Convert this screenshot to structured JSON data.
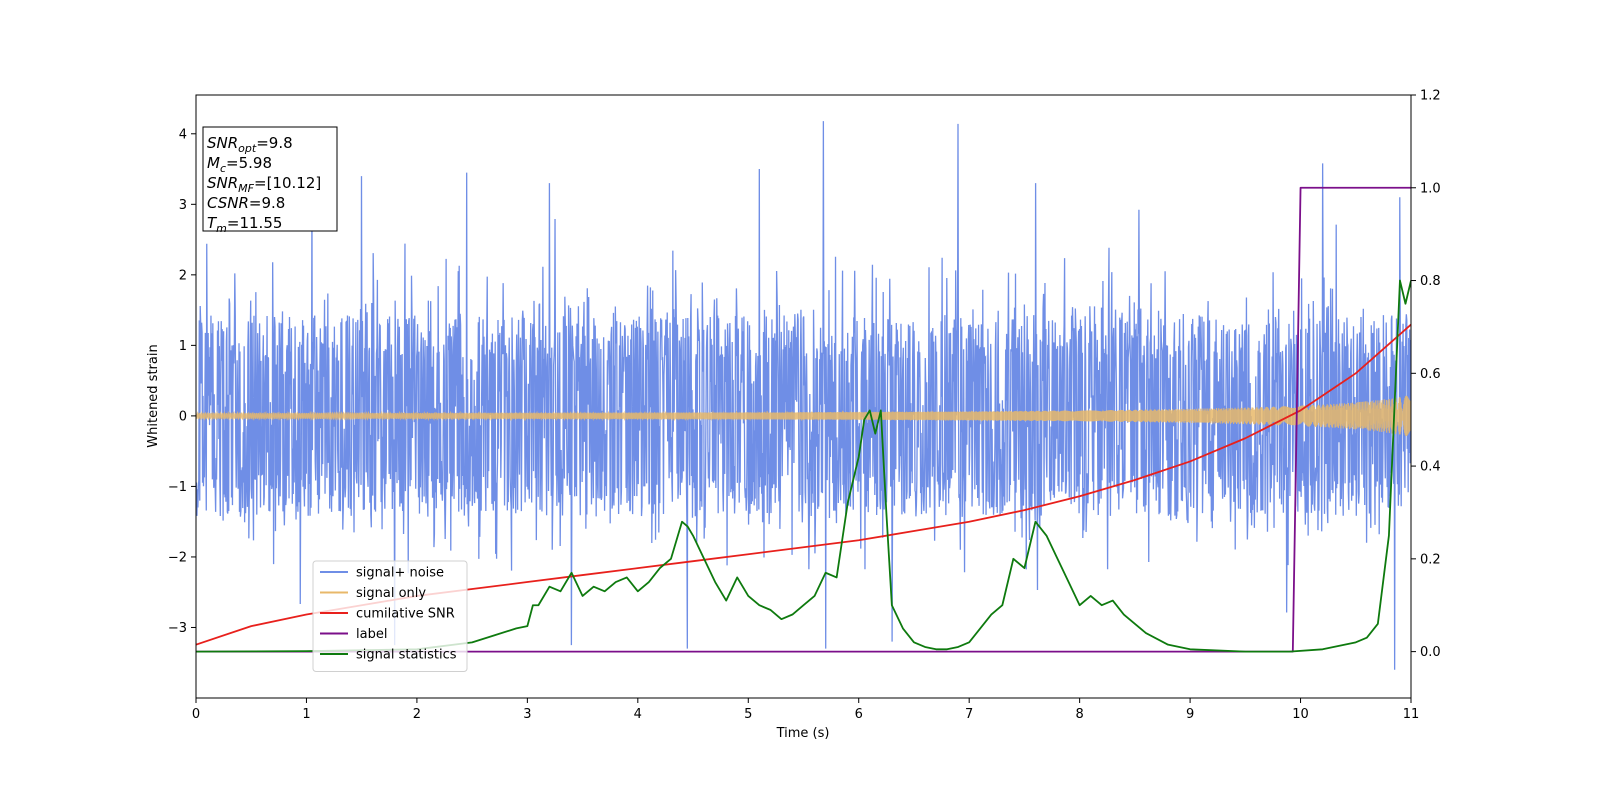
{
  "chart_data": {
    "type": "line",
    "title": "",
    "xlabel": "Time (s)",
    "ylabel": "Whitened strain",
    "xlim": [
      0,
      11
    ],
    "ylim": [
      -4.0,
      4.55
    ],
    "y2lim": [
      -0.1,
      1.2
    ],
    "x_ticks": [
      0,
      1,
      2,
      3,
      4,
      5,
      6,
      7,
      8,
      9,
      10,
      11
    ],
    "y_ticks": [
      -3,
      -2,
      -1,
      0,
      1,
      2,
      3,
      4
    ],
    "y_tick_labels": [
      "−3",
      "−2",
      "−1",
      "0",
      "1",
      "2",
      "3",
      "4"
    ],
    "y2_ticks": [
      0.0,
      0.2,
      0.4,
      0.6,
      0.8,
      1.0,
      1.2
    ],
    "y2_tick_labels": [
      "0.0",
      "0.2",
      "0.4",
      "0.6",
      "0.8",
      "1.0",
      "1.2"
    ],
    "grid": false,
    "legend_position": "lower-left",
    "annotation": {
      "lines": [
        {
          "base": "SNR",
          "sub": "opt",
          "value": "=9.8"
        },
        {
          "base": "M",
          "sub": "c",
          "value": "=5.98"
        },
        {
          "base": "SNR",
          "sub": "MF",
          "value": "=[10.12]"
        },
        {
          "base": "CSNR",
          "sub": "",
          "value": "=9.8"
        },
        {
          "base": "T",
          "sub": "m",
          "value": "=11.55"
        }
      ]
    },
    "series": [
      {
        "name": "signal+ noise",
        "color": "#6f8ee6",
        "axis": "left",
        "kind": "noise-band",
        "typical_amplitude": 1.3,
        "peak_values": [
          {
            "x": 1.05,
            "y": 3.1
          },
          {
            "x": 1.5,
            "y": 3.4
          },
          {
            "x": 2.45,
            "y": 3.45
          },
          {
            "x": 3.2,
            "y": 3.3
          },
          {
            "x": 5.1,
            "y": 3.5
          },
          {
            "x": 5.68,
            "y": 4.18
          },
          {
            "x": 6.9,
            "y": 4.14
          },
          {
            "x": 7.6,
            "y": 3.3
          },
          {
            "x": 10.2,
            "y": 3.58
          },
          {
            "x": 10.9,
            "y": 3.1
          },
          {
            "x": 1.8,
            "y": -3.25
          },
          {
            "x": 3.4,
            "y": -3.25
          },
          {
            "x": 4.45,
            "y": -3.3
          },
          {
            "x": 5.7,
            "y": -3.3
          },
          {
            "x": 6.3,
            "y": -3.2
          },
          {
            "x": 10.85,
            "y": -3.6
          }
        ]
      },
      {
        "name": "signal only",
        "color": "#e8b86a",
        "axis": "left",
        "kind": "chirp",
        "amplitude_start": 0.04,
        "amplitude_end": 0.3,
        "t_merge": 11.55
      },
      {
        "name": "cumilative SNR",
        "color": "#e8201c",
        "axis": "right",
        "kind": "line",
        "x": [
          0,
          0.5,
          1,
          1.5,
          2,
          2.5,
          3,
          3.5,
          4,
          4.5,
          5,
          5.5,
          6,
          6.5,
          7,
          7.5,
          8,
          8.5,
          9,
          9.5,
          10,
          10.5,
          11
        ],
        "values": [
          0.015,
          0.055,
          0.08,
          0.1,
          0.12,
          0.135,
          0.15,
          0.165,
          0.18,
          0.195,
          0.21,
          0.225,
          0.24,
          0.26,
          0.28,
          0.305,
          0.335,
          0.37,
          0.41,
          0.46,
          0.52,
          0.6,
          0.705
        ]
      },
      {
        "name": "label",
        "color": "#7b0f8a",
        "axis": "right",
        "kind": "line",
        "x": [
          0,
          9.93,
          10.0,
          11
        ],
        "values": [
          0.0,
          0.0,
          1.0,
          1.0
        ]
      },
      {
        "name": "signal statistics",
        "color": "#0e7a0e",
        "axis": "right",
        "kind": "line",
        "x": [
          0,
          1,
          2,
          2.5,
          2.7,
          2.9,
          3.0,
          3.05,
          3.1,
          3.2,
          3.3,
          3.4,
          3.5,
          3.6,
          3.7,
          3.8,
          3.9,
          4.0,
          4.1,
          4.2,
          4.3,
          4.4,
          4.45,
          4.5,
          4.6,
          4.7,
          4.8,
          4.9,
          5.0,
          5.1,
          5.2,
          5.3,
          5.4,
          5.5,
          5.6,
          5.7,
          5.8,
          5.9,
          6.0,
          6.05,
          6.1,
          6.15,
          6.2,
          6.25,
          6.3,
          6.4,
          6.5,
          6.6,
          6.7,
          6.8,
          6.9,
          7.0,
          7.1,
          7.2,
          7.3,
          7.4,
          7.5,
          7.6,
          7.7,
          7.8,
          7.9,
          8.0,
          8.1,
          8.2,
          8.3,
          8.4,
          8.5,
          8.6,
          8.8,
          9.0,
          9.5,
          9.9,
          10.2,
          10.5,
          10.6,
          10.7,
          10.8,
          10.9,
          10.95,
          11.0
        ],
        "values": [
          0.0,
          0.001,
          0.005,
          0.02,
          0.035,
          0.05,
          0.055,
          0.1,
          0.1,
          0.14,
          0.13,
          0.17,
          0.12,
          0.14,
          0.13,
          0.15,
          0.16,
          0.13,
          0.15,
          0.18,
          0.2,
          0.28,
          0.27,
          0.25,
          0.2,
          0.15,
          0.11,
          0.16,
          0.12,
          0.1,
          0.09,
          0.07,
          0.08,
          0.1,
          0.12,
          0.17,
          0.16,
          0.32,
          0.42,
          0.5,
          0.52,
          0.47,
          0.52,
          0.3,
          0.1,
          0.05,
          0.02,
          0.01,
          0.005,
          0.005,
          0.01,
          0.02,
          0.05,
          0.08,
          0.1,
          0.2,
          0.18,
          0.28,
          0.25,
          0.2,
          0.15,
          0.1,
          0.12,
          0.1,
          0.11,
          0.08,
          0.06,
          0.04,
          0.015,
          0.005,
          0.0,
          0.0,
          0.005,
          0.02,
          0.03,
          0.06,
          0.25,
          0.8,
          0.75,
          0.8
        ]
      }
    ]
  }
}
